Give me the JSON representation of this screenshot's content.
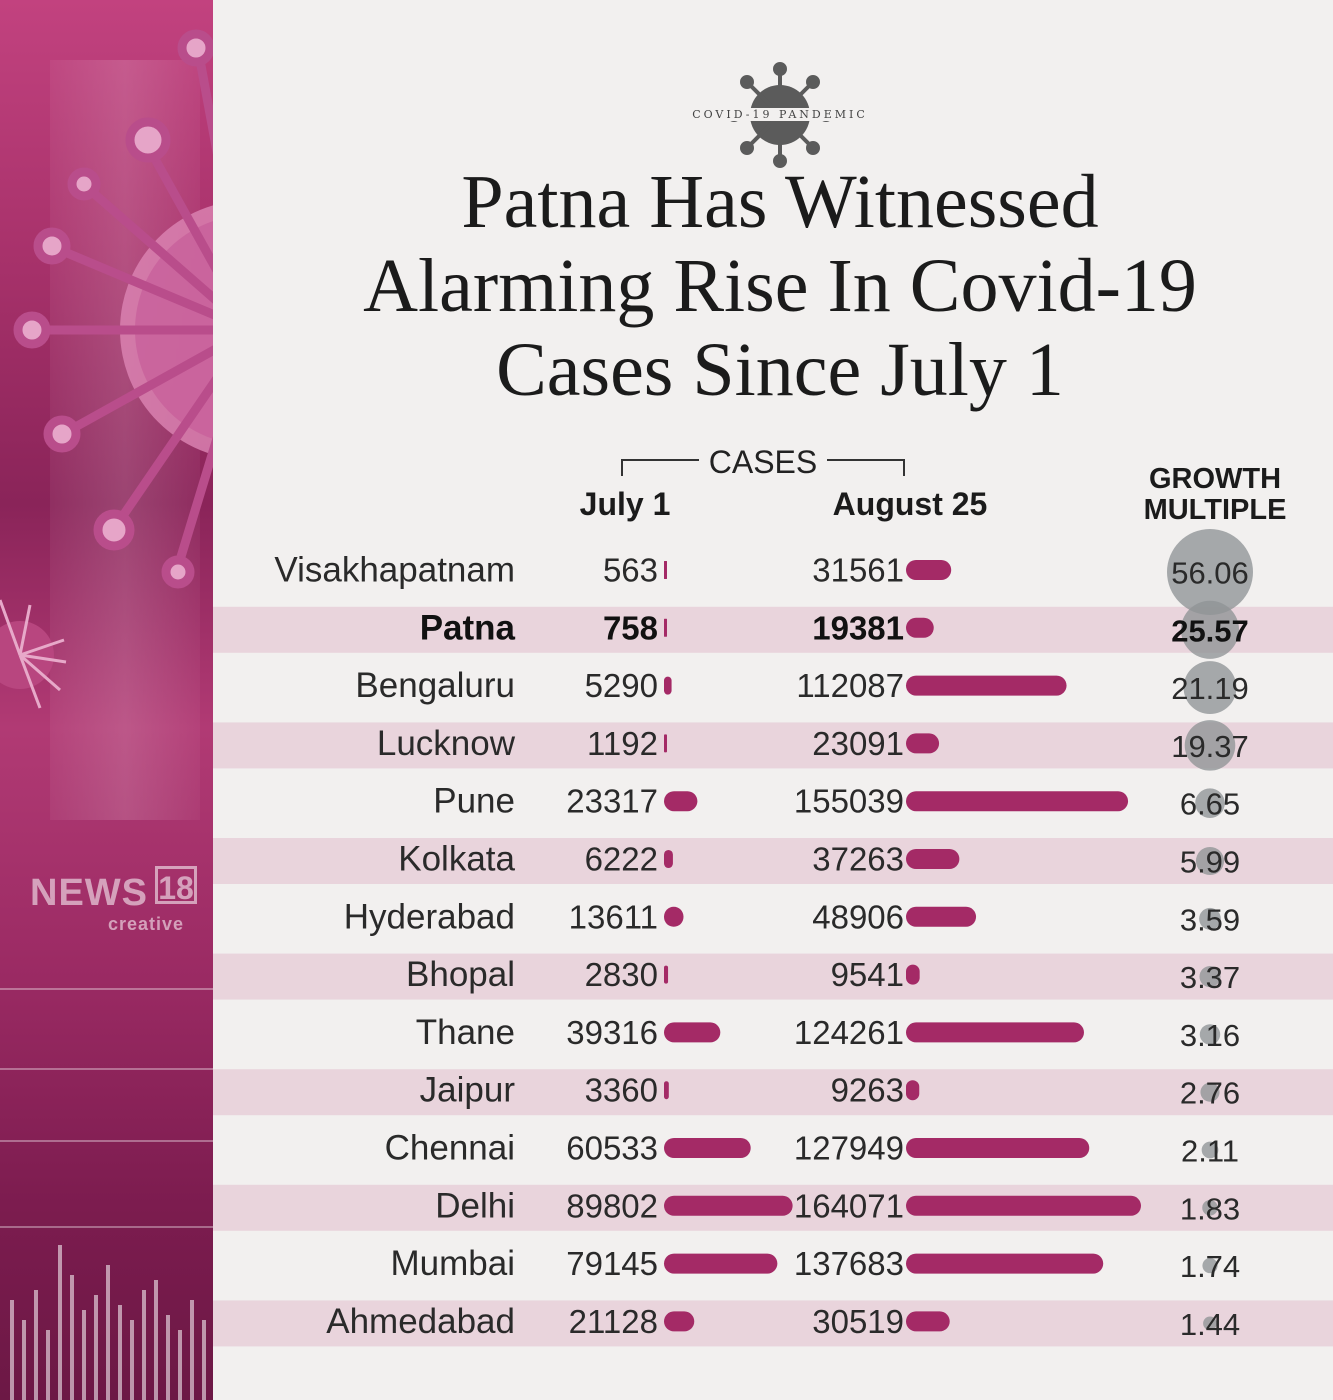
{
  "badge": {
    "label": "COVID-19 PANDEMIC"
  },
  "title": {
    "line1": "Patna Has Witnessed",
    "line2": "Alarming Rise In Covid-19",
    "line3": "Cases Since July 1"
  },
  "logo": {
    "word": "NEWS",
    "number": "18",
    "sub": "creative"
  },
  "colors": {
    "bar": "#a42a66",
    "band": "#e9d4dc",
    "circle": "#8f9396",
    "text": "#2a2a2a"
  },
  "chart_data": {
    "type": "table",
    "group_label": "CASES",
    "columns": [
      "July 1",
      "August 25",
      "GROWTH MULTIPLE"
    ],
    "growth_header": [
      "GROWTH",
      "MULTIPLE"
    ],
    "highlight": "Patna",
    "rows": [
      {
        "city": "Visakhapatnam",
        "july1": 563,
        "aug25": 31561,
        "growth": 56.06
      },
      {
        "city": "Patna",
        "july1": 758,
        "aug25": 19381,
        "growth": 25.57
      },
      {
        "city": "Bengaluru",
        "july1": 5290,
        "aug25": 112087,
        "growth": 21.19
      },
      {
        "city": "Lucknow",
        "july1": 1192,
        "aug25": 23091,
        "growth": 19.37
      },
      {
        "city": "Pune",
        "july1": 23317,
        "aug25": 155039,
        "growth": 6.65
      },
      {
        "city": "Kolkata",
        "july1": 6222,
        "aug25": 37263,
        "growth": 5.99
      },
      {
        "city": "Hyderabad",
        "july1": 13611,
        "aug25": 48906,
        "growth": 3.59
      },
      {
        "city": "Bhopal",
        "july1": 2830,
        "aug25": 9541,
        "growth": 3.37
      },
      {
        "city": "Thane",
        "july1": 39316,
        "aug25": 124261,
        "growth": 3.16
      },
      {
        "city": "Jaipur",
        "july1": 3360,
        "aug25": 9263,
        "growth": 2.76
      },
      {
        "city": "Chennai",
        "july1": 60533,
        "aug25": 127949,
        "growth": 2.11
      },
      {
        "city": "Delhi",
        "july1": 89802,
        "aug25": 164071,
        "growth": 1.83
      },
      {
        "city": "Mumbai",
        "july1": 79145,
        "aug25": 137683,
        "growth": 1.74
      },
      {
        "city": "Ahmedabad",
        "july1": 21128,
        "aug25": 30519,
        "growth": 1.44
      }
    ]
  }
}
